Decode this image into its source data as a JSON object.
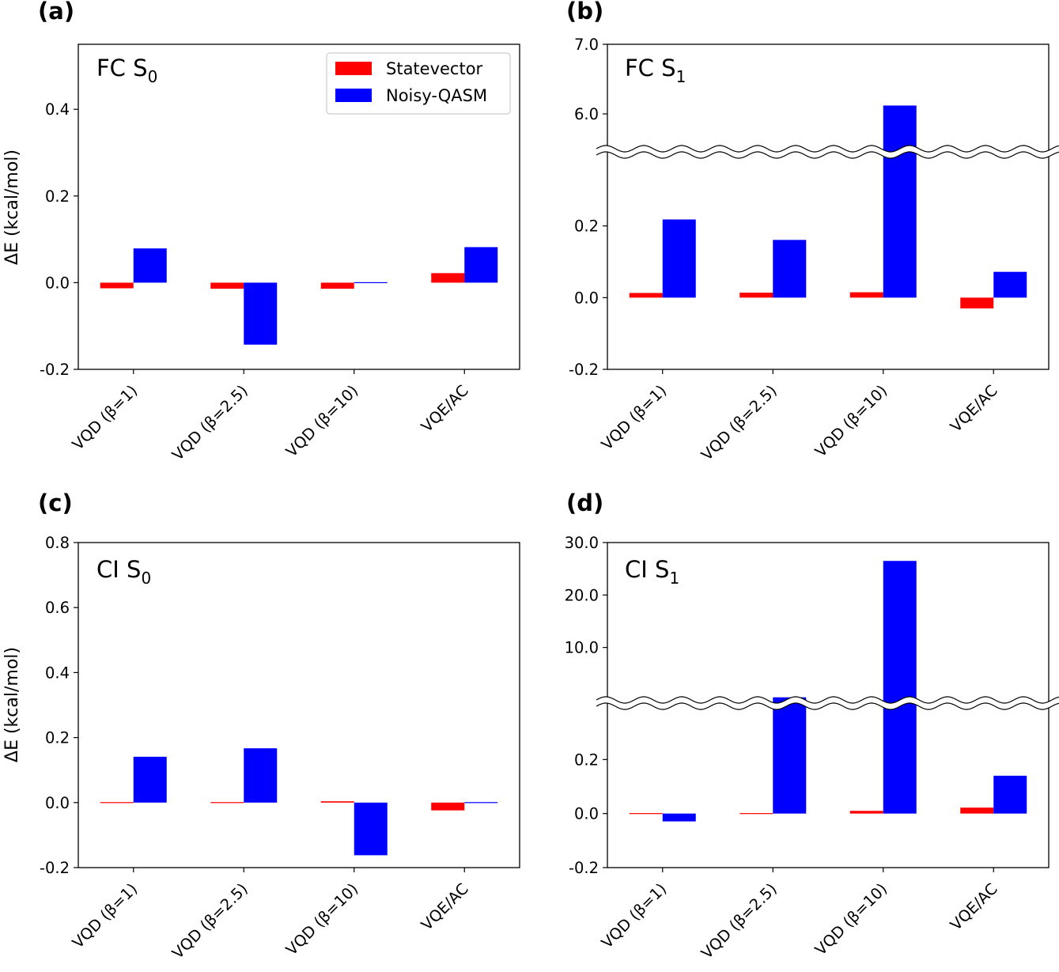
{
  "figure": {
    "legend": [
      {
        "name": "Statevector",
        "color": "#ff0000"
      },
      {
        "name": "Noisy-QASM",
        "color": "#0000ff"
      }
    ]
  },
  "chart_data": [
    {
      "panel": "(a)",
      "type": "bar",
      "title": "FC S",
      "title_sub": "0",
      "ylabel": "ΔE (kcal/mol)",
      "categories": [
        "VQD (β=1)",
        "VQD (β=2.5)",
        "VQD (β=10)",
        "VQE/AC"
      ],
      "yticks": [
        -0.2,
        0.0,
        0.2,
        0.4
      ],
      "ytick_labels": [
        "-0.2",
        "0.0",
        "0.2",
        "0.4"
      ],
      "ylim": [
        -0.2,
        0.55
      ],
      "legend_position": "top-right",
      "broken_axis": null,
      "series": [
        {
          "name": "Statevector",
          "color": "#ff0000",
          "values": [
            -0.013,
            -0.014,
            -0.014,
            0.022
          ]
        },
        {
          "name": "Noisy-QASM",
          "color": "#0000ff",
          "values": [
            0.079,
            -0.143,
            0.002,
            0.082
          ]
        }
      ]
    },
    {
      "panel": "(b)",
      "type": "bar",
      "title": "FC S",
      "title_sub": "1",
      "ylabel": "",
      "categories": [
        "VQD (β=1)",
        "VQD (β=2.5)",
        "VQD (β=10)",
        "VQE/AC"
      ],
      "yticks": [
        -0.2,
        0.0,
        0.2,
        6.0,
        7.0
      ],
      "ytick_labels": [
        "-0.2",
        "0.0",
        "0.2",
        "6.0",
        "7.0"
      ],
      "broken_axis": {
        "lower": {
          "range": [
            -0.2,
            0.4
          ]
        },
        "upper": {
          "range": [
            5.5,
            7.0
          ]
        }
      },
      "series": [
        {
          "name": "Statevector",
          "color": "#ff0000",
          "values": [
            0.013,
            0.014,
            0.015,
            -0.03
          ]
        },
        {
          "name": "Noisy-QASM",
          "color": "#0000ff",
          "values": [
            0.218,
            0.161,
            6.12,
            0.072
          ]
        }
      ]
    },
    {
      "panel": "(c)",
      "type": "bar",
      "title": "CI S",
      "title_sub": "0",
      "ylabel": "ΔE (kcal/mol)",
      "categories": [
        "VQD (β=1)",
        "VQD (β=2.5)",
        "VQD (β=10)",
        "VQE/AC"
      ],
      "yticks": [
        -0.2,
        0.0,
        0.2,
        0.4,
        0.6,
        0.8
      ],
      "ytick_labels": [
        "-0.2",
        "0.0",
        "0.2",
        "0.4",
        "0.6",
        "0.8"
      ],
      "ylim": [
        -0.2,
        0.8
      ],
      "broken_axis": null,
      "series": [
        {
          "name": "Statevector",
          "color": "#ff0000",
          "values": [
            -0.002,
            -0.002,
            0.004,
            -0.024
          ]
        },
        {
          "name": "Noisy-QASM",
          "color": "#0000ff",
          "values": [
            0.141,
            0.167,
            -0.162,
            -0.002
          ]
        }
      ]
    },
    {
      "panel": "(d)",
      "type": "bar",
      "title": "CI S",
      "title_sub": "1",
      "ylabel": "",
      "categories": [
        "VQD (β=1)",
        "VQD (β=2.5)",
        "VQD (β=10)",
        "VQE/AC"
      ],
      "yticks": [
        -0.2,
        0.0,
        0.2,
        10.0,
        20.0,
        30.0
      ],
      "ytick_labels": [
        "-0.2",
        "0.0",
        "0.2",
        "10.0",
        "20.0",
        "30.0"
      ],
      "broken_axis": {
        "lower": {
          "range": [
            -0.2,
            0.4
          ]
        },
        "upper": {
          "range": [
            0.0,
            30.0
          ]
        }
      },
      "series": [
        {
          "name": "Statevector",
          "color": "#ff0000",
          "values": [
            0.001,
            0.002,
            0.01,
            0.022
          ]
        },
        {
          "name": "Noisy-QASM",
          "color": "#0000ff",
          "values": [
            -0.029,
            0.5,
            26.5,
            0.14
          ]
        }
      ]
    }
  ]
}
